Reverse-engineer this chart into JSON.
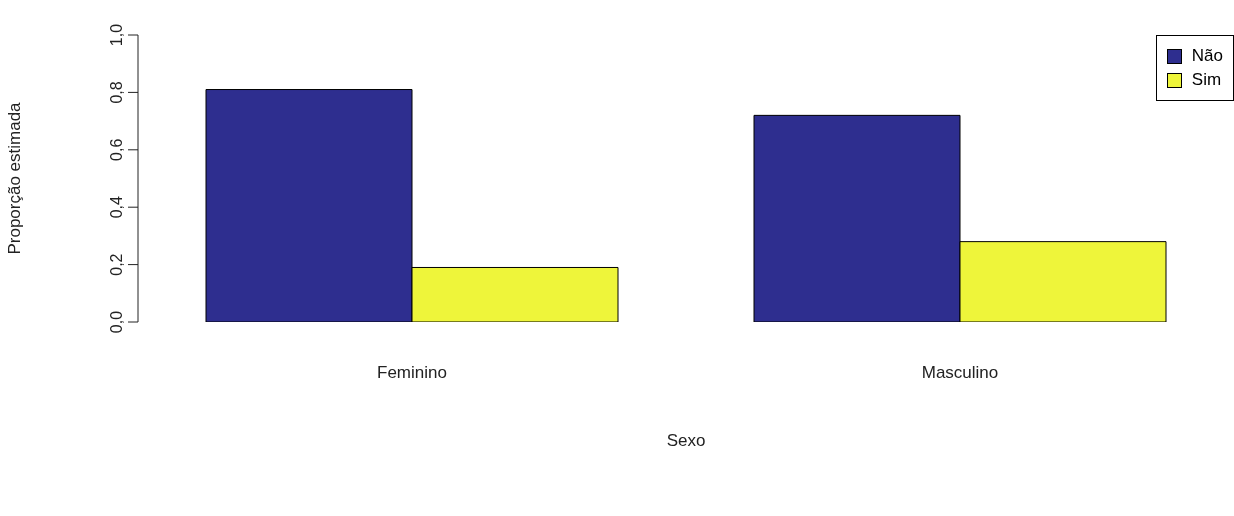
{
  "chart_data": {
    "type": "bar",
    "xlabel": "Sexo",
    "ylabel": "Proporção estimada",
    "categories": [
      "Feminino",
      "Masculino"
    ],
    "series": [
      {
        "name": "Não",
        "color": "#2e2e8f",
        "values": [
          0.81,
          0.72
        ]
      },
      {
        "name": "Sim",
        "color": "#eef53a",
        "values": [
          0.19,
          0.28
        ]
      }
    ],
    "ylim": [
      0,
      1
    ],
    "yticks": [
      {
        "value": 0,
        "label": "0,0"
      },
      {
        "value": 0.2,
        "label": "0,2"
      },
      {
        "value": 0.4,
        "label": "0,4"
      },
      {
        "value": 0.6,
        "label": "0,6"
      },
      {
        "value": 0.8,
        "label": "0,8"
      },
      {
        "value": 1,
        "label": "1,0"
      }
    ],
    "grid": false,
    "legend": "top right"
  }
}
